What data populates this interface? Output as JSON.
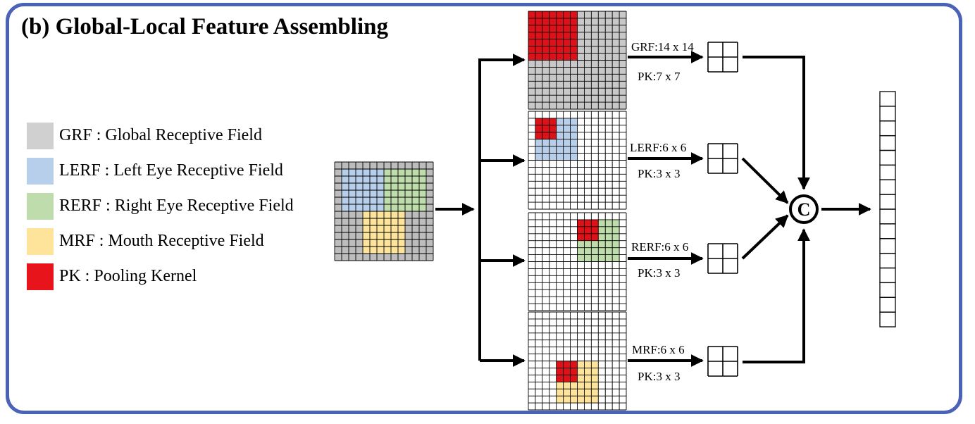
{
  "title": "(b) Global-Local Feature Assembling",
  "legend": [
    {
      "abbr": "GRF",
      "text": "GRF : Global Receptive Field",
      "color": "#d0d0d0"
    },
    {
      "abbr": "LERF",
      "text": "LERF : Left Eye Receptive Field",
      "color": "#b8cfec"
    },
    {
      "abbr": "RERF",
      "text": "RERF : Right Eye Receptive Field",
      "color": "#bfdcac"
    },
    {
      "abbr": "MRF",
      "text": "MRF :  Mouth Receptive Field",
      "color": "#fde49a"
    },
    {
      "abbr": "PK",
      "text": "PK : Pooling Kernel",
      "color": "#e8141b"
    }
  ],
  "colors": {
    "frame": "#4a63b7",
    "grid_line": "#000000",
    "input_gray": "#bdbdbd",
    "gray_region": "#c8c8c8",
    "blue": "#b8cfec",
    "green": "#bfdcac",
    "yellow": "#fde49a",
    "red": "#e01018"
  },
  "branches": [
    {
      "field_label": "GRF:14 x 14",
      "kernel_label": "PK:7 x 7"
    },
    {
      "field_label": "LERF:6 x 6",
      "kernel_label": "PK:3 x 3"
    },
    {
      "field_label": "RERF:6 x 6",
      "kernel_label": "PK:3 x 3"
    },
    {
      "field_label": "MRF:6 x 6",
      "kernel_label": "PK:3 x 3"
    }
  ],
  "concat_symbol": "C",
  "output_vector_cells": 16
}
